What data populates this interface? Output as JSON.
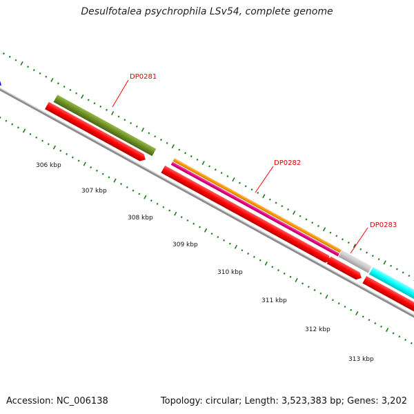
{
  "title": "Desulfotalea psychrophila LSv54, complete genome",
  "footer": {
    "accession": "Accession: NC_006138",
    "info": "Topology: circular; Length: 3,523,383 bp; Genes: 3,202"
  },
  "ticks": [
    "306 kbp",
    "307 kbp",
    "308 kbp",
    "309 kbp",
    "310 kbp",
    "311 kbp",
    "312 kbp",
    "313 kbp"
  ],
  "genes": [
    {
      "label": "DP0281",
      "color": "#d40000"
    },
    {
      "label": "DP0282",
      "color": "#d40000"
    },
    {
      "label": "DP0283",
      "color": "#d40000"
    }
  ],
  "colors": {
    "backbone": "#8c8c8c",
    "cds": "#ff0000",
    "olive": "#6b8e23",
    "orange": "#ff9900",
    "magenta": "#e6007e",
    "grey": "#c8c8c8",
    "cyan": "#00ffff",
    "blue": "#0000ff",
    "tick": "#1a7a1a"
  }
}
